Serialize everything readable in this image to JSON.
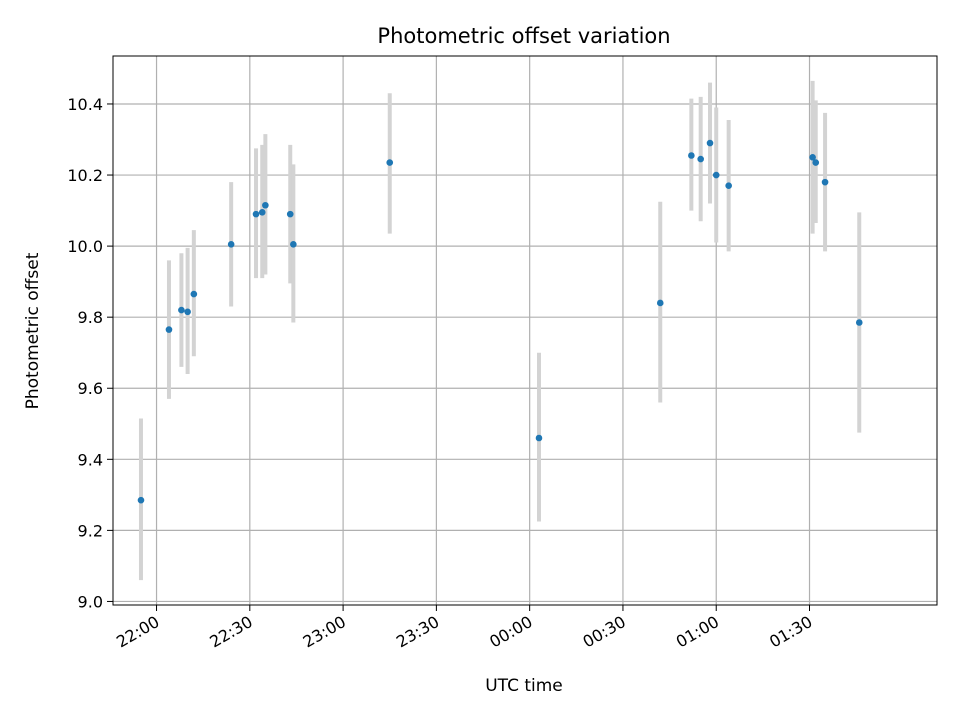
{
  "chart_data": {
    "type": "scatter",
    "title": "Photometric offset variation",
    "xlabel": "UTC time",
    "ylabel": "Photometric offset",
    "x_axis_kind": "time",
    "xlim": [
      "21:46",
      "02:11"
    ],
    "ylim": [
      8.99,
      10.535
    ],
    "x_ticks": [
      "22:00",
      "22:30",
      "23:00",
      "23:30",
      "00:00",
      "00:30",
      "01:00",
      "01:30"
    ],
    "y_ticks": [
      9.0,
      9.2,
      9.4,
      9.6,
      9.8,
      10.0,
      10.2,
      10.4
    ],
    "grid": true,
    "legend": "none",
    "marker_color": "#1f77b4",
    "errorbar_color": "#d3d3d3",
    "points": [
      {
        "x": "21:55",
        "y": 9.285,
        "ylow": 9.06,
        "yhigh": 9.515
      },
      {
        "x": "22:04",
        "y": 9.765,
        "ylow": 9.57,
        "yhigh": 9.96
      },
      {
        "x": "22:08",
        "y": 9.82,
        "ylow": 9.66,
        "yhigh": 9.98
      },
      {
        "x": "22:10",
        "y": 9.815,
        "ylow": 9.64,
        "yhigh": 9.995
      },
      {
        "x": "22:12",
        "y": 9.865,
        "ylow": 9.69,
        "yhigh": 10.045
      },
      {
        "x": "22:24",
        "y": 10.005,
        "ylow": 9.83,
        "yhigh": 10.18
      },
      {
        "x": "22:32",
        "y": 10.09,
        "ylow": 9.91,
        "yhigh": 10.275
      },
      {
        "x": "22:34",
        "y": 10.095,
        "ylow": 9.91,
        "yhigh": 10.285
      },
      {
        "x": "22:35",
        "y": 10.115,
        "ylow": 9.92,
        "yhigh": 10.315
      },
      {
        "x": "22:43",
        "y": 10.09,
        "ylow": 9.895,
        "yhigh": 10.285
      },
      {
        "x": "22:44",
        "y": 10.005,
        "ylow": 9.785,
        "yhigh": 10.23
      },
      {
        "x": "23:15",
        "y": 10.235,
        "ylow": 10.035,
        "yhigh": 10.43
      },
      {
        "x": "00:03",
        "y": 9.46,
        "ylow": 9.225,
        "yhigh": 9.7
      },
      {
        "x": "00:42",
        "y": 9.84,
        "ylow": 9.56,
        "yhigh": 10.125
      },
      {
        "x": "00:52",
        "y": 10.255,
        "ylow": 10.1,
        "yhigh": 10.415
      },
      {
        "x": "00:55",
        "y": 10.245,
        "ylow": 10.07,
        "yhigh": 10.42
      },
      {
        "x": "00:58",
        "y": 10.29,
        "ylow": 10.12,
        "yhigh": 10.46
      },
      {
        "x": "01:00",
        "y": 10.2,
        "ylow": 10.01,
        "yhigh": 10.39
      },
      {
        "x": "01:04",
        "y": 10.17,
        "ylow": 9.985,
        "yhigh": 10.355
      },
      {
        "x": "01:31",
        "y": 10.25,
        "ylow": 10.035,
        "yhigh": 10.465
      },
      {
        "x": "01:32",
        "y": 10.235,
        "ylow": 10.065,
        "yhigh": 10.41
      },
      {
        "x": "01:35",
        "y": 10.18,
        "ylow": 9.985,
        "yhigh": 10.375
      },
      {
        "x": "01:46",
        "y": 9.785,
        "ylow": 9.475,
        "yhigh": 10.095
      }
    ]
  }
}
